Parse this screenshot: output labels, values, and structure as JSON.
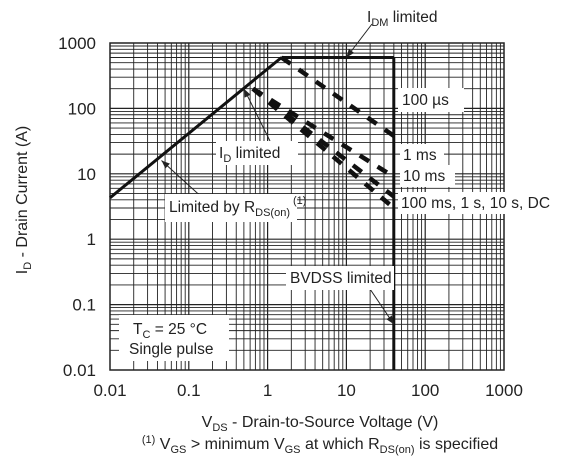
{
  "chart_data": {
    "type": "line",
    "x_scale": "log",
    "y_scale": "log",
    "xlim": [
      0.01,
      1000
    ],
    "ylim": [
      0.01,
      1000
    ],
    "x_ticks": [
      "0.01",
      "0.1",
      "1",
      "10",
      "100",
      "1000"
    ],
    "y_ticks": [
      "0.01",
      "0.1",
      "1",
      "10",
      "100",
      "1000"
    ],
    "grid": true,
    "series": [
      {
        "name": "Limited by RDS(on)",
        "style": "solid",
        "x": [
          0.01,
          1.5
        ],
        "y": [
          4.3,
          600
        ]
      },
      {
        "name": "IDM limited",
        "style": "solid",
        "x": [
          1.5,
          40
        ],
        "y": [
          600,
          600
        ]
      },
      {
        "name": "BVDSS limited",
        "style": "solid",
        "x": [
          40,
          40
        ],
        "y": [
          0.01,
          600
        ]
      },
      {
        "name": "100 µs",
        "style": "dashed",
        "x": [
          1.5,
          40
        ],
        "y": [
          600,
          38
        ]
      },
      {
        "name": "1 ms",
        "style": "dashed",
        "x": [
          0.65,
          40
        ],
        "y": [
          200,
          9
        ]
      },
      {
        "name": "10 ms",
        "style": "dashed",
        "x": [
          0.65,
          40
        ],
        "y": [
          200,
          4.5
        ]
      },
      {
        "name": "100 ms, 1 s, 10 s, DC",
        "style": "dashed",
        "x": [
          0.65,
          40
        ],
        "y": [
          200,
          3
        ]
      }
    ]
  },
  "labels": {
    "idm": {
      "pre": "I",
      "sub": "DM",
      "post": " limited"
    },
    "id": {
      "pre": "I",
      "sub": "D",
      "post": " limited"
    },
    "rds": {
      "pre": "Limited by R",
      "sub": "DS(on)",
      "sup": "(1)"
    },
    "t100us": "100 µs",
    "t1ms": "1 ms",
    "t10ms": "10 ms",
    "tdc": "100 ms, 1 s, 10 s, DC",
    "bvdss": "BVDSS limited",
    "tc": {
      "pre": "T",
      "sub": "C",
      "post": " = 25 °C"
    },
    "pulse": "Single pulse"
  },
  "axes": {
    "ylabel": {
      "pre": "I",
      "sub": "D",
      "post": " - Drain Current (A)"
    },
    "xlabel": {
      "pre": "V",
      "sub": "DS",
      "post": " - Drain-to-Source Voltage (V)"
    }
  },
  "footnote": {
    "sup": "(1)",
    "a": " V",
    "asub": "GS",
    "b": " > minimum V",
    "bsub": "GS",
    "c": " at which R",
    "csub": "DS(on)",
    "d": " is specified"
  }
}
